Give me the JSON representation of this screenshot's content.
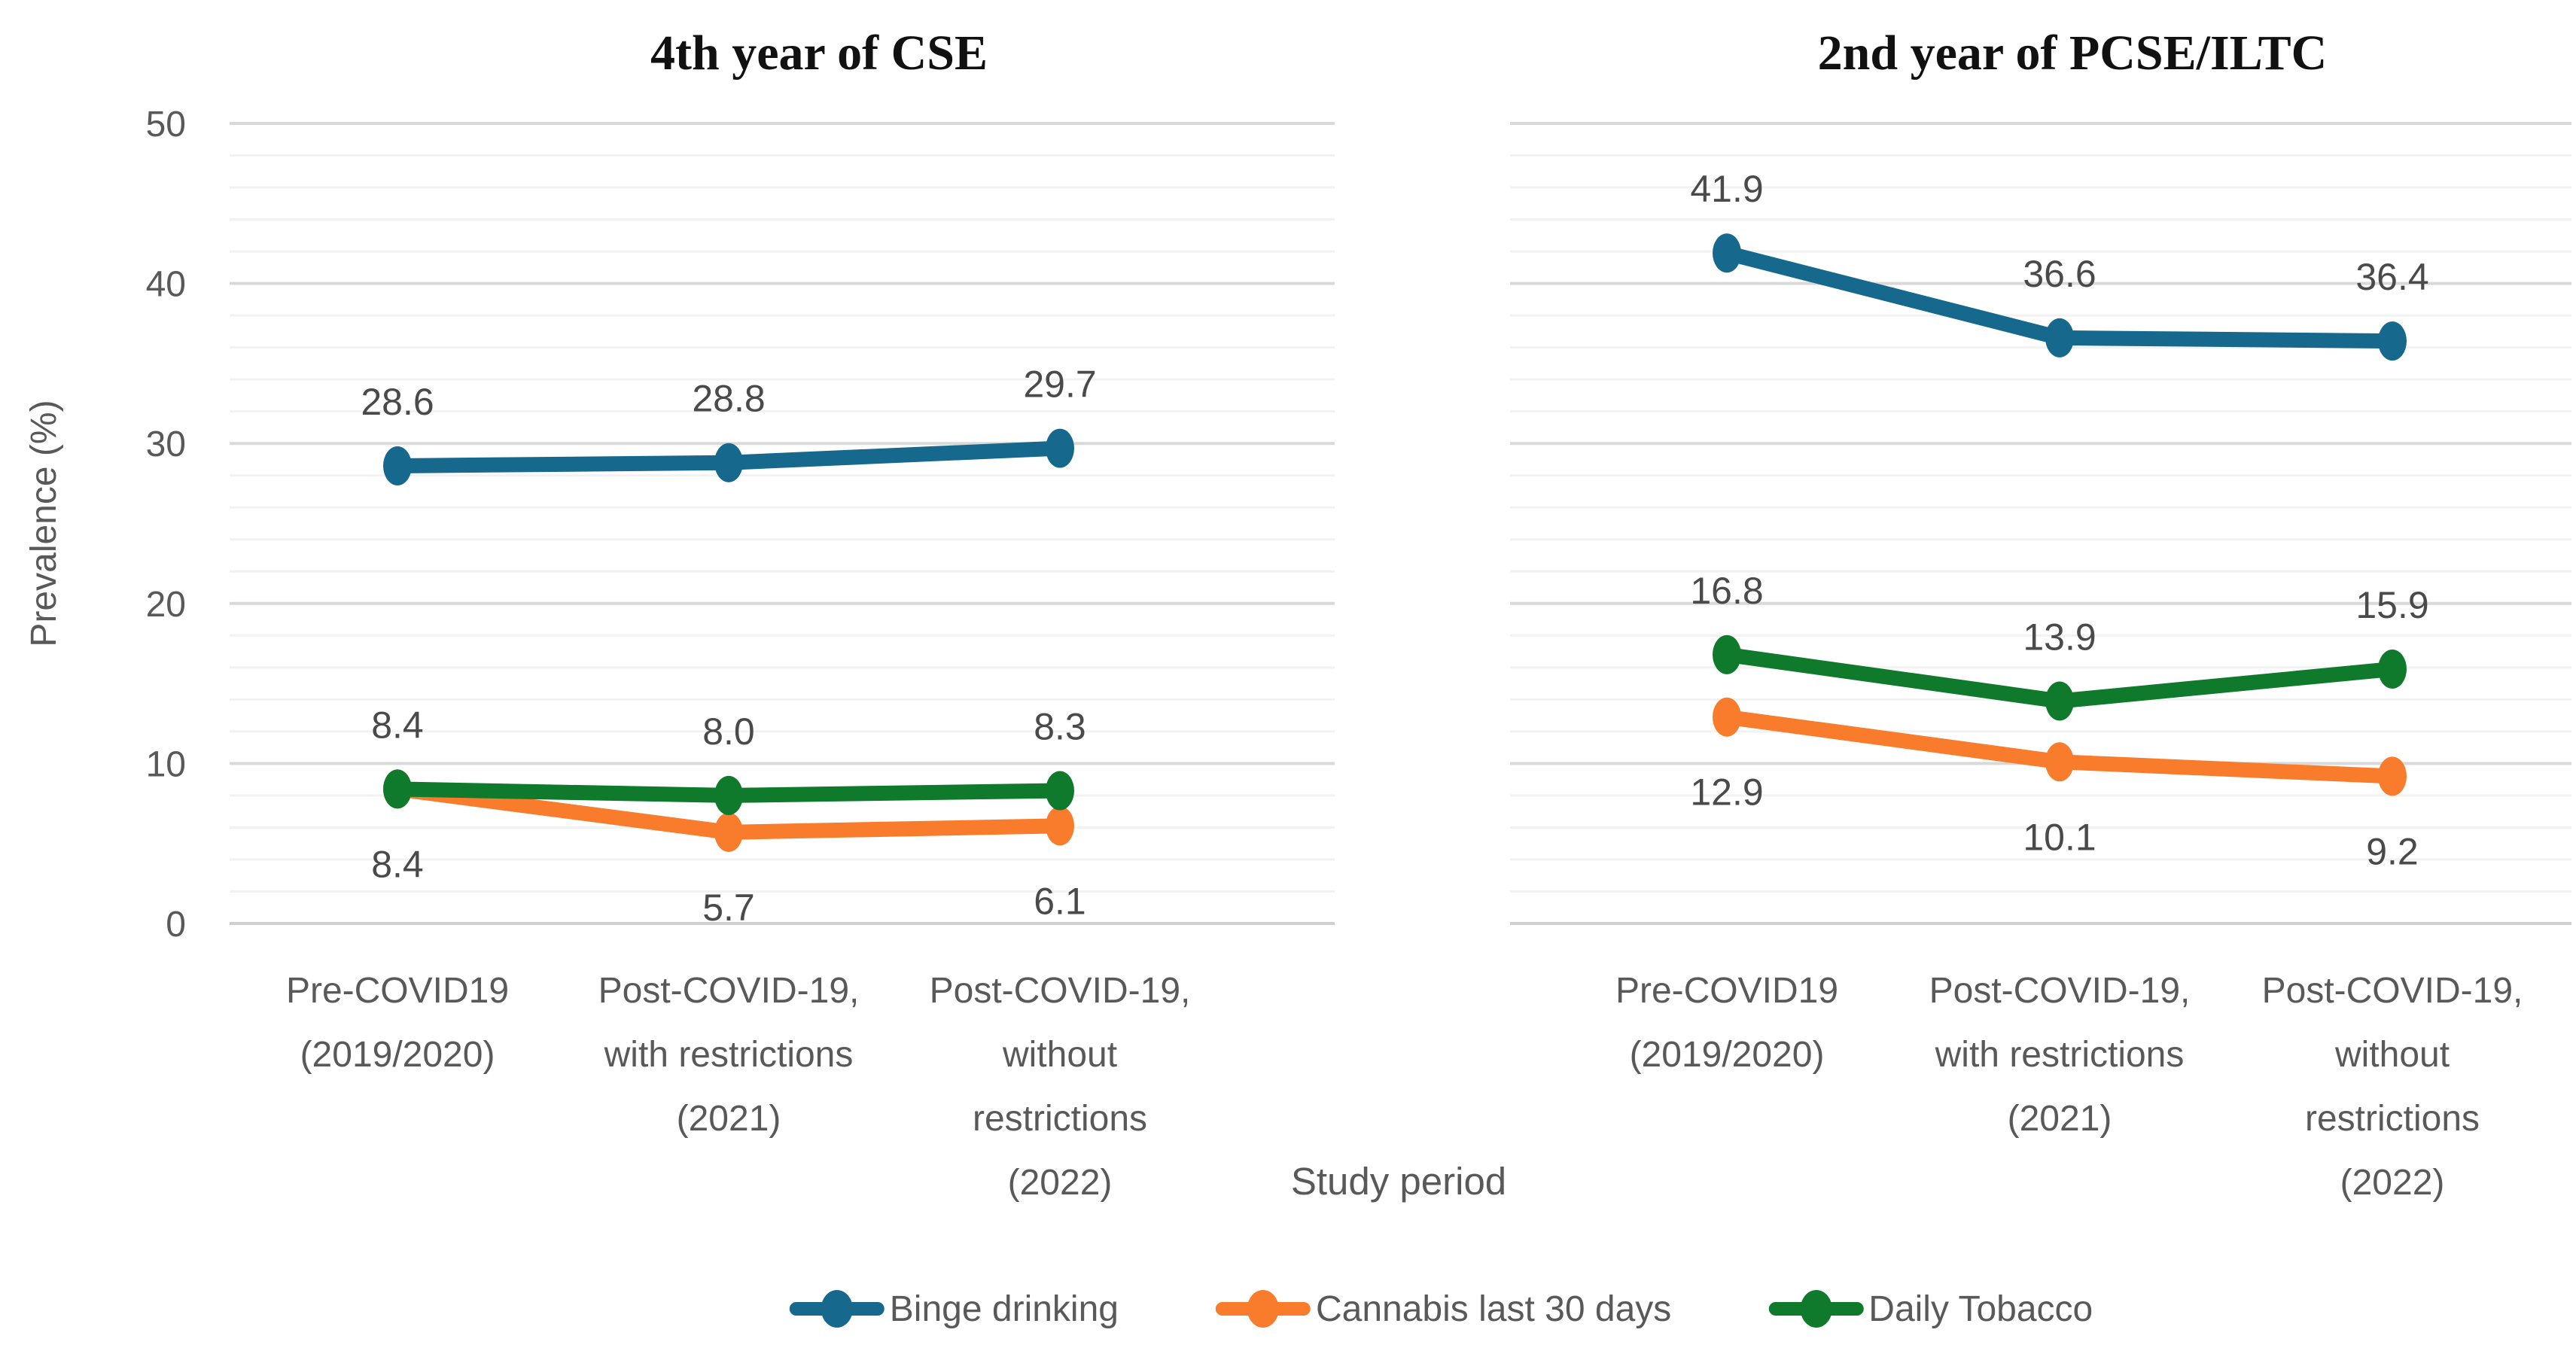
{
  "figure": {
    "y_axis_title": "Prevalence (%)",
    "x_axis_title": "Study period",
    "y_ticks": [
      0,
      10,
      20,
      30,
      40,
      50
    ],
    "colors": {
      "binge_drinking": "#16688C",
      "cannabis_last_30_days": "#F87C2C",
      "daily_tobacco": "#0F7A2B",
      "axis_text": "#595959",
      "data_label_text": "#4A4A4A",
      "title_text": "#111111",
      "gridline_major": "#D9D9D9",
      "gridline_minor": "#F2F2F2",
      "baseline": "#CFCFCF"
    }
  },
  "legend": {
    "items": [
      {
        "key": "binge-drinking",
        "label": "Binge drinking",
        "color": "#16688C"
      },
      {
        "key": "cannabis-last-30-days",
        "label": "Cannabis last 30 days",
        "color": "#F87C2C"
      },
      {
        "key": "daily-tobacco",
        "label": "Daily Tobacco",
        "color": "#0F7A2B"
      }
    ]
  },
  "chart_data": [
    {
      "type": "line",
      "title": "4th year of CSE",
      "xlabel": "Study period",
      "ylabel": "Prevalence (%)",
      "ylim": [
        0,
        50
      ],
      "y_major_step": 10,
      "y_minor_step": 2,
      "grid": true,
      "legend_position": "bottom",
      "categories": [
        [
          "Pre-COVID19",
          "(2019/2020)"
        ],
        [
          "Post-COVID-19,",
          "with restrictions",
          "(2021)"
        ],
        [
          "Post-COVID-19,",
          "without",
          "restrictions",
          "(2022)"
        ]
      ],
      "series": [
        {
          "name": "Binge drinking",
          "key": "binge-drinking",
          "color": "#16688C",
          "values": [
            28.6,
            28.8,
            29.7
          ],
          "labels": [
            "28.6",
            "28.8",
            "29.7"
          ],
          "label_side": [
            "above",
            "above",
            "above"
          ]
        },
        {
          "name": "Cannabis last 30 days",
          "key": "cannabis-last-30-days",
          "color": "#F87C2C",
          "values": [
            8.4,
            5.7,
            6.1
          ],
          "labels": [
            "8.4",
            "5.7",
            "6.1"
          ],
          "label_side": [
            "below",
            "below",
            "below"
          ]
        },
        {
          "name": "Daily Tobacco",
          "key": "daily-tobacco",
          "color": "#0F7A2B",
          "values": [
            8.4,
            8.0,
            8.3
          ],
          "labels": [
            "8.4",
            "8.0",
            "8.3"
          ],
          "label_side": [
            "above",
            "above",
            "above"
          ]
        }
      ]
    },
    {
      "type": "line",
      "title": "2nd year of PCSE/ILTC",
      "xlabel": "Study period",
      "ylabel": "Prevalence (%)",
      "ylim": [
        0,
        50
      ],
      "y_major_step": 10,
      "y_minor_step": 2,
      "grid": true,
      "legend_position": "bottom",
      "categories": [
        [
          "Pre-COVID19",
          "(2019/2020)"
        ],
        [
          "Post-COVID-19,",
          "with restrictions",
          "(2021)"
        ],
        [
          "Post-COVID-19,",
          "without",
          "restrictions",
          "(2022)"
        ]
      ],
      "series": [
        {
          "name": "Binge drinking",
          "key": "binge-drinking",
          "color": "#16688C",
          "values": [
            41.9,
            36.6,
            36.4
          ],
          "labels": [
            "41.9",
            "36.6",
            "36.4"
          ],
          "label_side": [
            "above",
            "above",
            "above"
          ]
        },
        {
          "name": "Cannabis last 30 days",
          "key": "cannabis-last-30-days",
          "color": "#F87C2C",
          "values": [
            12.9,
            10.1,
            9.2
          ],
          "labels": [
            "12.9",
            "10.1",
            "9.2"
          ],
          "label_side": [
            "below",
            "below",
            "below"
          ]
        },
        {
          "name": "Daily Tobacco",
          "key": "daily-tobacco",
          "color": "#0F7A2B",
          "values": [
            16.8,
            13.9,
            15.9
          ],
          "labels": [
            "16.8",
            "13.9",
            "15.9"
          ],
          "label_side": [
            "above",
            "above",
            "above"
          ]
        }
      ]
    }
  ]
}
